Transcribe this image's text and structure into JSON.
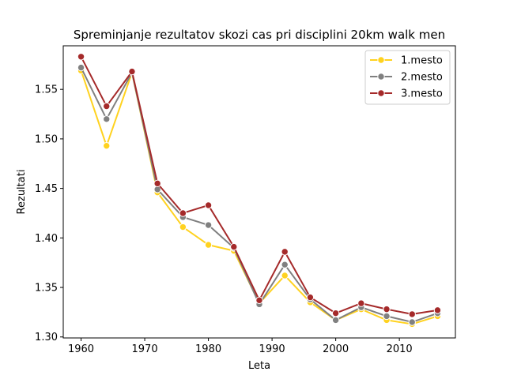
{
  "chart_data": {
    "type": "line",
    "title": "Spreminjanje rezultatov skozi cas pri disciplini 20km walk men",
    "xlabel": "Leta",
    "ylabel": "Rezultati",
    "xlim": [
      1957.2,
      2018.8
    ],
    "ylim": [
      1.299,
      1.594
    ],
    "xticks": [
      1960,
      1970,
      1980,
      1990,
      2000,
      2010
    ],
    "yticks": [
      1.3,
      1.35,
      1.4,
      1.45,
      1.5,
      1.55
    ],
    "ytick_labels": [
      "1.30",
      "1.35",
      "1.40",
      "1.45",
      "1.50",
      "1.55"
    ],
    "x": [
      1960,
      1964,
      1968,
      1972,
      1976,
      1980,
      1984,
      1988,
      1992,
      1996,
      2000,
      2004,
      2008,
      2012,
      2016
    ],
    "series": [
      {
        "name": "1.mesto",
        "color": "#FFD21F",
        "values": [
          1.569,
          1.493,
          1.567,
          1.446,
          1.411,
          1.393,
          1.387,
          1.334,
          1.362,
          1.335,
          1.317,
          1.328,
          1.317,
          1.313,
          1.321
        ]
      },
      {
        "name": "2.mesto",
        "color": "#808080",
        "values": [
          1.572,
          1.52,
          1.567,
          1.449,
          1.421,
          1.413,
          1.39,
          1.333,
          1.373,
          1.338,
          1.317,
          1.33,
          1.321,
          1.315,
          1.324
        ]
      },
      {
        "name": "3.mesto",
        "color": "#A52A2A",
        "values": [
          1.583,
          1.533,
          1.568,
          1.455,
          1.425,
          1.433,
          1.391,
          1.337,
          1.386,
          1.34,
          1.324,
          1.334,
          1.328,
          1.323,
          1.327
        ]
      }
    ],
    "grid": false,
    "legend_position": "top-right"
  }
}
